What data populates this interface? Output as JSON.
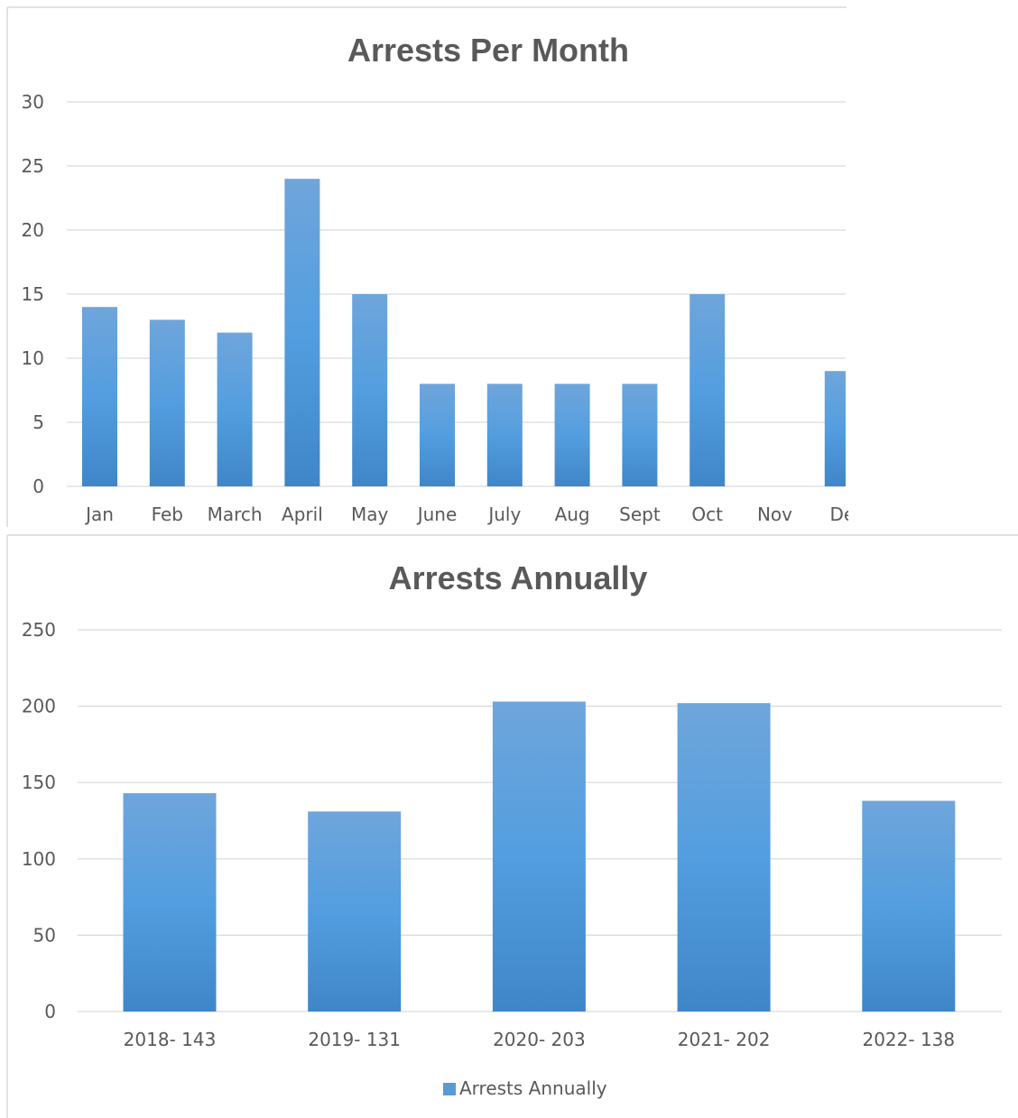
{
  "charts": [
    {
      "type": "bar",
      "title": "Arrests Per Month",
      "categories": [
        "Jan",
        "Feb",
        "March",
        "April",
        "May",
        "June",
        "July",
        "Aug",
        "Sept",
        "Oct",
        "Nov",
        "De"
      ],
      "values": [
        14,
        13,
        12,
        24,
        15,
        8,
        8,
        8,
        8,
        15,
        0,
        9
      ],
      "yticks": [
        "0",
        "5",
        "10",
        "15",
        "20",
        "25",
        "30"
      ],
      "ylim": [
        0,
        30
      ],
      "grid": true,
      "bar_color": "#5b9bd5"
    },
    {
      "type": "bar",
      "title": "Arrests Annually",
      "categories": [
        "2018- 143",
        "2019- 131",
        "2020- 203",
        "2021- 202",
        "2022- 138"
      ],
      "values": [
        143,
        131,
        203,
        202,
        138
      ],
      "yticks": [
        "0",
        "50",
        "100",
        "150",
        "200",
        "250"
      ],
      "ylim": [
        0,
        250
      ],
      "grid": true,
      "legend": "Arrests Annually",
      "legend_position": "bottom",
      "bar_color": "#5b9bd5"
    }
  ],
  "chart_data": [
    {
      "type": "bar",
      "title": "Arrests Per Month",
      "categories": [
        "Jan",
        "Feb",
        "March",
        "April",
        "May",
        "June",
        "July",
        "Aug",
        "Sept",
        "Oct",
        "Nov",
        "De"
      ],
      "values": [
        14,
        13,
        12,
        24,
        15,
        8,
        8,
        8,
        8,
        15,
        0,
        9
      ],
      "ylim": [
        0,
        30
      ]
    },
    {
      "type": "bar",
      "title": "Arrests Annually",
      "categories": [
        "2018- 143",
        "2019- 131",
        "2020- 203",
        "2021- 202",
        "2022- 138"
      ],
      "series": [
        {
          "name": "Arrests Annually",
          "values": [
            143,
            131,
            203,
            202,
            138
          ]
        }
      ],
      "ylim": [
        0,
        250
      ]
    }
  ]
}
